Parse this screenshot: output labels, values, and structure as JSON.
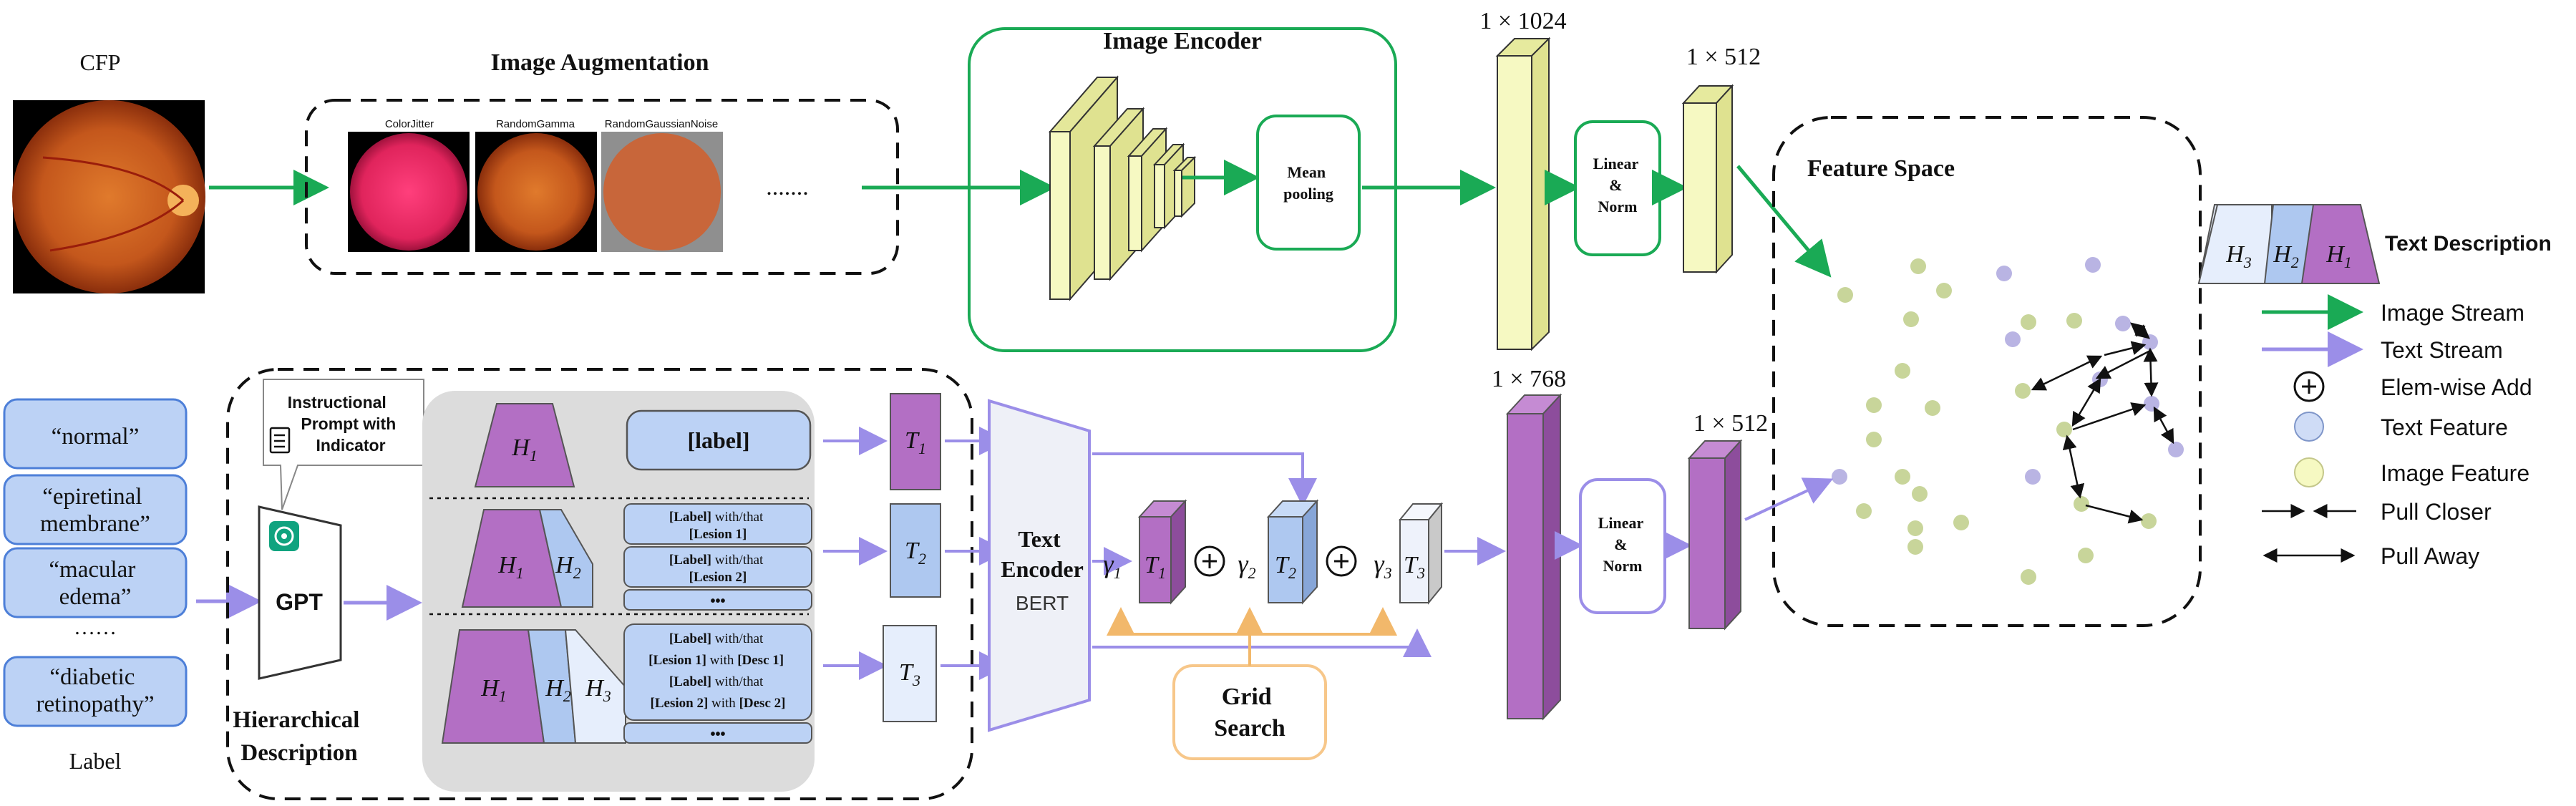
{
  "cfp": {
    "label": "CFP"
  },
  "augmentation": {
    "title": "Image Augmentation",
    "items": [
      "ColorJitter",
      "RandomGamma",
      "RandomGaussianNoise"
    ],
    "ellipsis": "......."
  },
  "image_encoder": {
    "title": "Image Encoder",
    "pooling": "Mean pooling"
  },
  "dims": {
    "img_1024": "1 × 1024",
    "img_512": "1 × 512",
    "txt_768": "1 × 768",
    "txt_512": "1 × 512"
  },
  "linear_norm": "Linear & Norm",
  "feature_space": {
    "title": "Feature Space"
  },
  "labels": {
    "items": [
      "“normal”",
      "“epiretinal membrane”",
      "“macular edema”",
      "……",
      "“diabetic retinopathy”"
    ],
    "caption": "Label"
  },
  "gpt": {
    "prompt": "Instructional Prompt with Indicator",
    "name": "GPT"
  },
  "hierarchical": {
    "caption": "Hierarchical Description",
    "h1": "H1",
    "h2": "H2",
    "h3": "H3",
    "row1_label": "[label]",
    "row2_boxes": [
      "[Label] with/that [Lesion 1]",
      "[Label] with/that [Lesion 2]"
    ],
    "row3_boxes": [
      "[Label] with/that [Lesion 1] with [Desc 1] [Label] with/that [Lesion 2] with [Desc 2]"
    ],
    "dots": "•••"
  },
  "text_tokens": [
    "T1",
    "T2",
    "T3"
  ],
  "text_encoder": {
    "title": "Text Encoder",
    "model": "BERT"
  },
  "weights": [
    "γ1",
    "γ2",
    "γ3"
  ],
  "grid_search": "Grid Search",
  "legend": {
    "text_description": "Text Description",
    "items": [
      "Image Stream",
      "Text Stream",
      "Elem-wise Add",
      "Text Feature",
      "Image Feature",
      "Pull Closer",
      "Pull Away"
    ]
  },
  "colors": {
    "green": "#1aaa55",
    "purple": "#9b8ee8",
    "magenta": "#b36fc4",
    "yellow": "#f6f9c2",
    "lightblue": "#aec8f0",
    "orange": "#f7c78a",
    "labelblue": "#bcd2f5"
  }
}
